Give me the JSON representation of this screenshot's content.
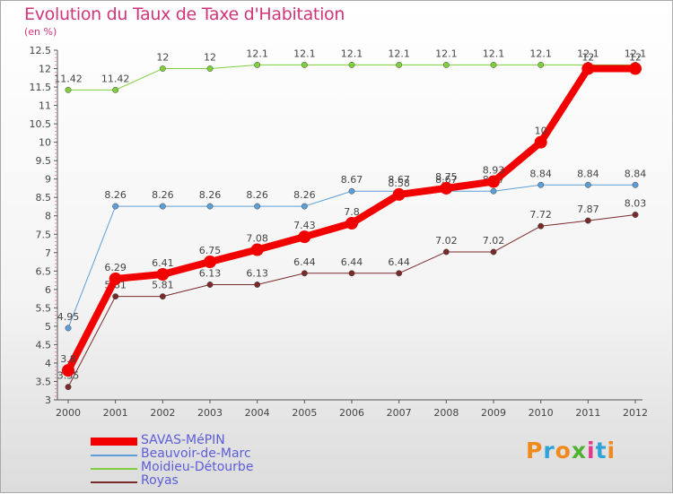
{
  "header": {
    "title": "Evolution du Taux de Taxe d'Habitation",
    "subtitle": "(en %)"
  },
  "logo": {
    "text": "Proxiti",
    "colors": [
      "#f08a1c",
      "#2fa3d8",
      "#f08a1c",
      "#4fb233",
      "#e03a8c",
      "#2fa3d8",
      "#f08a1c"
    ]
  },
  "chart_data": {
    "type": "line",
    "title": "Evolution du Taux de Taxe d'Habitation",
    "subtitle": "(en %)",
    "x": [
      "2000",
      "2001",
      "2002",
      "2003",
      "2004",
      "2005",
      "2006",
      "2007",
      "2008",
      "2009",
      "2010",
      "2011",
      "2012"
    ],
    "ylim": [
      3,
      12.5
    ],
    "yticks": [
      "3",
      "3.5",
      "4",
      "4.5",
      "5",
      "5.5",
      "6",
      "6.5",
      "7",
      "7.5",
      "8",
      "8.5",
      "9",
      "9.5",
      "10",
      "10.5",
      "11",
      "11.5",
      "12",
      "12.5"
    ],
    "grid": false,
    "legend_position": "bottom-left",
    "series": [
      {
        "name": "Royas",
        "color": "#7a2a2a",
        "width": 1,
        "values": [
          3.35,
          5.81,
          5.81,
          6.13,
          6.13,
          6.44,
          6.44,
          6.44,
          7.02,
          7.02,
          7.72,
          7.87,
          8.03
        ],
        "labels": [
          "3.35",
          "5.81",
          "5.81",
          "6.13",
          "6.13",
          "6.44",
          "6.44",
          "6.44",
          "7.02",
          "7.02",
          "7.72",
          "7.87",
          "8.03"
        ]
      },
      {
        "name": "Moidieu-Détourbe",
        "color": "#7fcf3c",
        "width": 1,
        "values": [
          11.42,
          11.42,
          12,
          12,
          12.1,
          12.1,
          12.1,
          12.1,
          12.1,
          12.1,
          12.1,
          12.1,
          12.1
        ],
        "labels": [
          "11.42",
          "11.42",
          "12",
          "12",
          "12.1",
          "12.1",
          "12.1",
          "12.1",
          "12.1",
          "12.1",
          "12.1",
          "12.1",
          "12.1"
        ]
      },
      {
        "name": "Beauvoir-de-Marc",
        "color": "#5e9ed6",
        "width": 1,
        "values": [
          4.95,
          8.26,
          8.26,
          8.26,
          8.26,
          8.26,
          8.67,
          8.67,
          8.67,
          8.67,
          8.84,
          8.84,
          8.84
        ],
        "labels": [
          "4.95",
          "8.26",
          "8.26",
          "8.26",
          "8.26",
          "8.26",
          "8.67",
          "8.67",
          "8.67",
          "8.67",
          "8.84",
          "8.84",
          "8.84"
        ]
      },
      {
        "name": "SAVAS-MéPIN",
        "color": "#f20000",
        "width": 8,
        "values": [
          3.8,
          6.29,
          6.41,
          6.75,
          7.08,
          7.43,
          7.8,
          8.58,
          8.75,
          8.93,
          10,
          12,
          12
        ],
        "labels": [
          "3.8",
          "6.29",
          "6.41",
          "6.75",
          "7.08",
          "7.43",
          "7.8",
          "8.58",
          "8.75",
          "8.93",
          "10",
          "12",
          "12"
        ]
      }
    ],
    "legend_order": [
      "SAVAS-MéPIN",
      "Beauvoir-de-Marc",
      "Moidieu-Détourbe",
      "Royas"
    ]
  }
}
